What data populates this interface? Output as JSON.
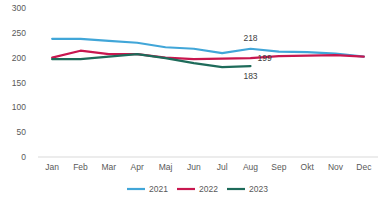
{
  "chart_data": {
    "type": "line",
    "categories": [
      "Jan",
      "Feb",
      "Mar",
      "Apr",
      "Maj",
      "Jun",
      "Jul",
      "Aug",
      "Sep",
      "Okt",
      "Nov",
      "Dec"
    ],
    "series": [
      {
        "name": "2021",
        "color": "#41a6d8",
        "values": [
          238,
          238,
          234,
          230,
          221,
          218,
          209,
          218,
          212,
          211,
          208,
          202
        ],
        "value_labels": [
          null,
          null,
          null,
          null,
          null,
          null,
          null,
          "218",
          null,
          null,
          null,
          null
        ]
      },
      {
        "name": "2022",
        "color": "#c8174f",
        "values": [
          200,
          214,
          207,
          207,
          200,
          197,
          198,
          199,
          203,
          204,
          205,
          202
        ],
        "value_labels": [
          null,
          null,
          null,
          null,
          null,
          null,
          null,
          "199",
          null,
          null,
          null,
          null
        ]
      },
      {
        "name": "2023",
        "color": "#1e6b5a",
        "values": [
          197,
          197,
          202,
          207,
          199,
          189,
          181,
          183,
          null,
          null,
          null,
          null
        ],
        "value_labels": [
          null,
          null,
          null,
          null,
          null,
          null,
          null,
          "183",
          null,
          null,
          null,
          null
        ]
      }
    ],
    "ylim": [
      0,
      300
    ],
    "yticks": [
      0,
      50,
      100,
      150,
      200,
      250,
      300
    ],
    "grid": false,
    "legend": "bottom",
    "data_labels": true
  }
}
